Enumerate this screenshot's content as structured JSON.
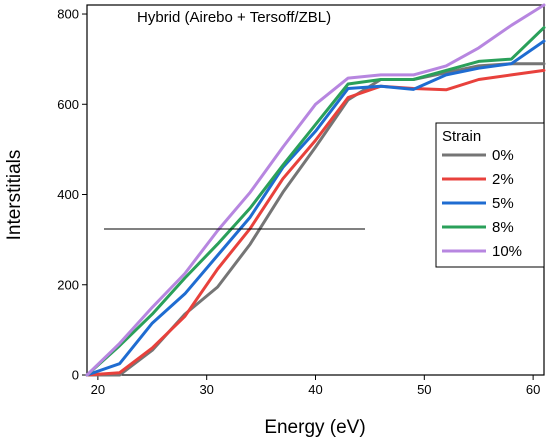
{
  "chart_data": {
    "type": "line",
    "title": "Hybrid (Airebo + Tersoff/ZBL)",
    "xlabel": "Energy (eV)",
    "ylabel": "Interstitials",
    "xlim": [
      19,
      61
    ],
    "ylim": [
      0,
      820
    ],
    "xticks": [
      20,
      30,
      40,
      50,
      60
    ],
    "yticks": [
      0,
      200,
      400,
      600,
      800
    ],
    "grid": false,
    "legend": {
      "title": "Strain",
      "position": "right"
    },
    "series": [
      {
        "name": "0%",
        "color": "#757575",
        "x": [
          19,
          22,
          25,
          28,
          31,
          34,
          37,
          40,
          43,
          46,
          49,
          52,
          55,
          58,
          61
        ],
        "y": [
          0,
          0,
          55,
          135,
          195,
          290,
          405,
          505,
          610,
          655,
          655,
          670,
          685,
          690,
          690
        ]
      },
      {
        "name": "2%",
        "color": "#e8413c",
        "x": [
          19,
          22,
          25,
          28,
          31,
          34,
          37,
          40,
          43,
          46,
          49,
          52,
          55,
          58,
          61
        ],
        "y": [
          0,
          5,
          60,
          130,
          235,
          325,
          435,
          520,
          615,
          640,
          635,
          632,
          655,
          665,
          675
        ]
      },
      {
        "name": "5%",
        "color": "#1f6cd1",
        "x": [
          19,
          22,
          25,
          28,
          31,
          34,
          37,
          40,
          43,
          46,
          49,
          52,
          55,
          58,
          61
        ],
        "y": [
          0,
          25,
          115,
          180,
          265,
          350,
          460,
          540,
          635,
          640,
          633,
          665,
          680,
          690,
          740
        ]
      },
      {
        "name": "8%",
        "color": "#2aa05a",
        "x": [
          19,
          22,
          25,
          28,
          31,
          34,
          37,
          40,
          43,
          46,
          49,
          52,
          55,
          58,
          61
        ],
        "y": [
          0,
          65,
          135,
          215,
          290,
          370,
          465,
          555,
          645,
          655,
          655,
          675,
          695,
          700,
          770
        ]
      },
      {
        "name": "10%",
        "color": "#b786e0",
        "x": [
          19,
          22,
          25,
          28,
          31,
          34,
          37,
          40,
          43,
          46,
          49,
          52,
          55,
          58,
          61
        ],
        "y": [
          0,
          70,
          150,
          225,
          320,
          405,
          505,
          600,
          658,
          665,
          665,
          685,
          725,
          775,
          820
        ]
      }
    ]
  }
}
